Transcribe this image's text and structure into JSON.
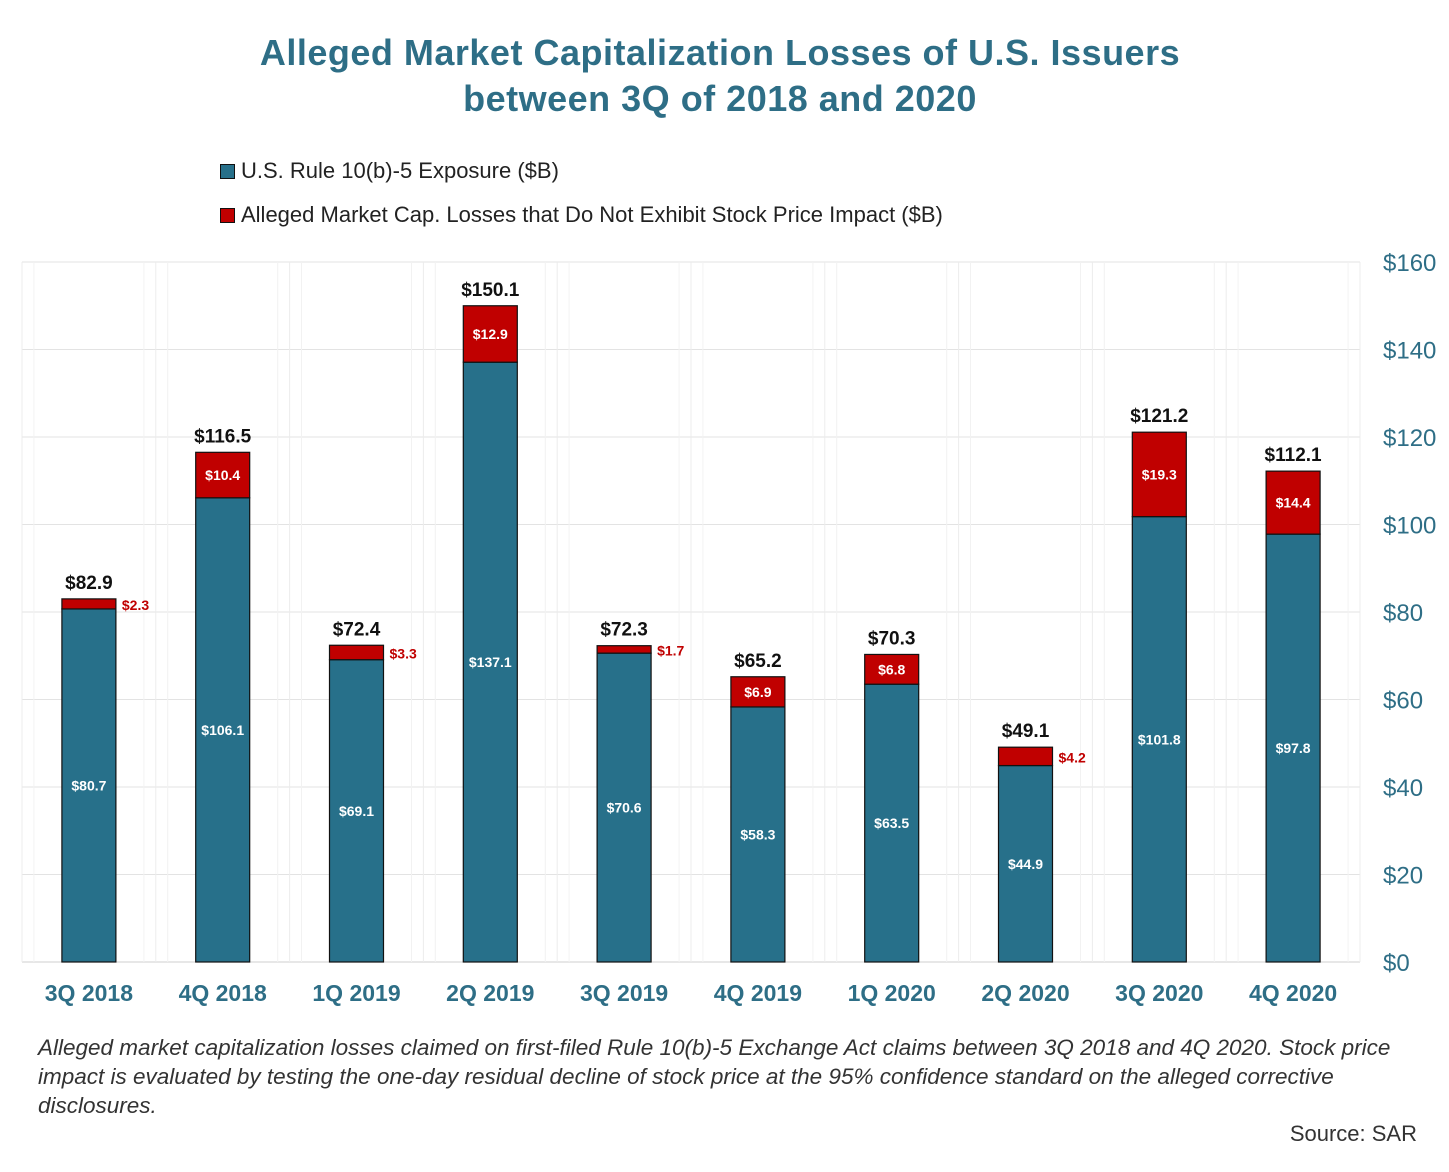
{
  "chart_data": {
    "type": "bar",
    "stacked": true,
    "title_lines": [
      "Alleged Market Capitalization Losses of U.S. Issuers",
      "between 3Q of 2018 and 2020"
    ],
    "categories": [
      "3Q 2018",
      "4Q 2018",
      "1Q 2019",
      "2Q 2019",
      "3Q 2019",
      "4Q 2019",
      "1Q 2020",
      "2Q 2020",
      "3Q 2020",
      "4Q 2020"
    ],
    "series": [
      {
        "name": "U.S. Rule 10(b)-5 Exposure ($B)",
        "color": "#27708a",
        "values": [
          80.7,
          106.1,
          69.1,
          137.1,
          70.6,
          58.3,
          63.5,
          44.9,
          101.8,
          97.8
        ],
        "labels": [
          "$80.7",
          "$106.1",
          "$69.1",
          "$137.1",
          "$70.6",
          "$58.3",
          "$63.5",
          "$44.9",
          "$101.8",
          "$97.8"
        ]
      },
      {
        "name": "Alleged Market Cap. Losses that Do Not Exhibit Stock Price Impact ($B)",
        "color": "#c00000",
        "values": [
          2.3,
          10.4,
          3.3,
          12.9,
          1.7,
          6.9,
          6.8,
          4.2,
          19.3,
          14.4
        ],
        "labels": [
          "$2.3",
          "$10.4",
          "$3.3",
          "$12.9",
          "$1.7",
          "$6.9",
          "$6.8",
          "$4.2",
          "$19.3",
          "$14.4"
        ]
      }
    ],
    "totals": [
      82.9,
      116.5,
      72.4,
      150.1,
      72.3,
      65.2,
      70.3,
      49.1,
      121.2,
      112.1
    ],
    "total_labels": [
      "$82.9",
      "$116.5",
      "$72.4",
      "$150.1",
      "$72.3",
      "$65.2",
      "$70.3",
      "$49.1",
      "$121.2",
      "$112.1"
    ],
    "ylim": [
      0,
      160
    ],
    "yticks": [
      0,
      20,
      40,
      60,
      80,
      100,
      120,
      140,
      160
    ],
    "ytick_labels": [
      "$0",
      "$20",
      "$40",
      "$60",
      "$80",
      "$100",
      "$120",
      "$140",
      "$160"
    ],
    "y_axis_side": "right",
    "grid": true,
    "legend_position": "top-left",
    "xlabel": "",
    "ylabel": "",
    "axis_label_color": "#2e6e86"
  },
  "footnote": "Alleged market capitalization losses claimed on first-filed Rule 10(b)-5 Exchange Act claims between 3Q 2018 and 4Q 2020.  Stock price impact is evaluated by testing the one-day residual decline of stock price at the 95% confidence standard on the alleged corrective disclosures.",
  "source": "Source: SAR"
}
